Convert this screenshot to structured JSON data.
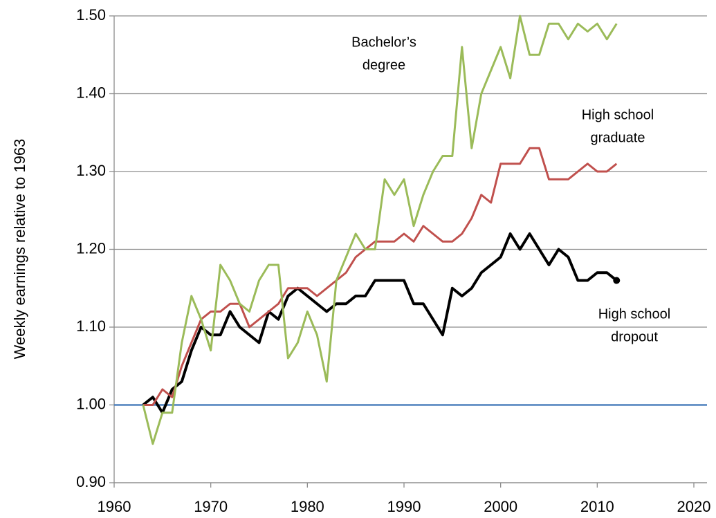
{
  "chart_data": {
    "type": "line",
    "ylabel": "Weekly earnings relative to 1963",
    "x": [
      1963,
      1964,
      1965,
      1966,
      1967,
      1968,
      1969,
      1970,
      1971,
      1972,
      1973,
      1974,
      1975,
      1976,
      1977,
      1978,
      1979,
      1980,
      1981,
      1982,
      1983,
      1984,
      1985,
      1986,
      1987,
      1988,
      1989,
      1990,
      1991,
      1992,
      1993,
      1994,
      1995,
      1996,
      1997,
      1998,
      1999,
      2000,
      2001,
      2002,
      2003,
      2004,
      2005,
      2006,
      2007,
      2008,
      2009,
      2010,
      2011,
      2012
    ],
    "series": [
      {
        "label": [
          "High school",
          "dropout"
        ],
        "color": "#000000",
        "end_marker": true,
        "values": [
          1.0,
          1.01,
          0.99,
          1.02,
          1.03,
          1.07,
          1.1,
          1.09,
          1.09,
          1.12,
          1.1,
          1.09,
          1.08,
          1.12,
          1.11,
          1.14,
          1.15,
          1.14,
          1.13,
          1.12,
          1.13,
          1.13,
          1.14,
          1.14,
          1.16,
          1.16,
          1.16,
          1.16,
          1.13,
          1.13,
          1.11,
          1.09,
          1.15,
          1.14,
          1.15,
          1.17,
          1.18,
          1.19,
          1.22,
          1.2,
          1.22,
          1.2,
          1.18,
          1.2,
          1.19,
          1.16,
          1.16,
          1.17,
          1.17,
          1.16
        ]
      },
      {
        "label": [
          "High school",
          "graduate"
        ],
        "color": "#c0504d",
        "values": [
          1.0,
          1.0,
          1.02,
          1.01,
          1.05,
          1.08,
          1.11,
          1.12,
          1.12,
          1.13,
          1.13,
          1.1,
          1.11,
          1.12,
          1.13,
          1.15,
          1.15,
          1.15,
          1.14,
          1.15,
          1.16,
          1.17,
          1.19,
          1.2,
          1.21,
          1.21,
          1.21,
          1.22,
          1.21,
          1.23,
          1.22,
          1.21,
          1.21,
          1.22,
          1.24,
          1.27,
          1.26,
          1.31,
          1.31,
          1.31,
          1.33,
          1.33,
          1.29,
          1.29,
          1.29,
          1.3,
          1.31,
          1.3,
          1.3,
          1.31
        ]
      },
      {
        "label": [
          "Bachelor’s",
          "degree"
        ],
        "color": "#9bbb59",
        "values": [
          1.0,
          0.95,
          0.99,
          0.99,
          1.08,
          1.14,
          1.11,
          1.07,
          1.18,
          1.16,
          1.13,
          1.12,
          1.16,
          1.18,
          1.18,
          1.06,
          1.08,
          1.12,
          1.09,
          1.03,
          1.16,
          1.19,
          1.22,
          1.2,
          1.2,
          1.29,
          1.27,
          1.29,
          1.23,
          1.27,
          1.3,
          1.32,
          1.32,
          1.46,
          1.33,
          1.4,
          1.43,
          1.46,
          1.42,
          1.5,
          1.45,
          1.45,
          1.49,
          1.49,
          1.47,
          1.49,
          1.48,
          1.49,
          1.47,
          1.49
        ]
      }
    ],
    "reference_line": {
      "value": 1,
      "color": "#4f81bd"
    },
    "xlim": [
      1960,
      2020
    ],
    "xticks": [
      1960,
      1970,
      1980,
      1990,
      2000,
      2010,
      2020
    ],
    "ylim": [
      0.9,
      1.5
    ],
    "yticks": [
      {
        "value": 0.9,
        "label": "0.90"
      },
      {
        "value": 1,
        "label": "1.00"
      },
      {
        "value": 1.1,
        "label": "1.10"
      },
      {
        "value": 1.2,
        "label": "1.20"
      },
      {
        "value": 1.3,
        "label": "1.30"
      },
      {
        "value": 1.4,
        "label": "1.40"
      },
      {
        "value": 1.5,
        "label": "1.50"
      }
    ],
    "grid": true
  }
}
